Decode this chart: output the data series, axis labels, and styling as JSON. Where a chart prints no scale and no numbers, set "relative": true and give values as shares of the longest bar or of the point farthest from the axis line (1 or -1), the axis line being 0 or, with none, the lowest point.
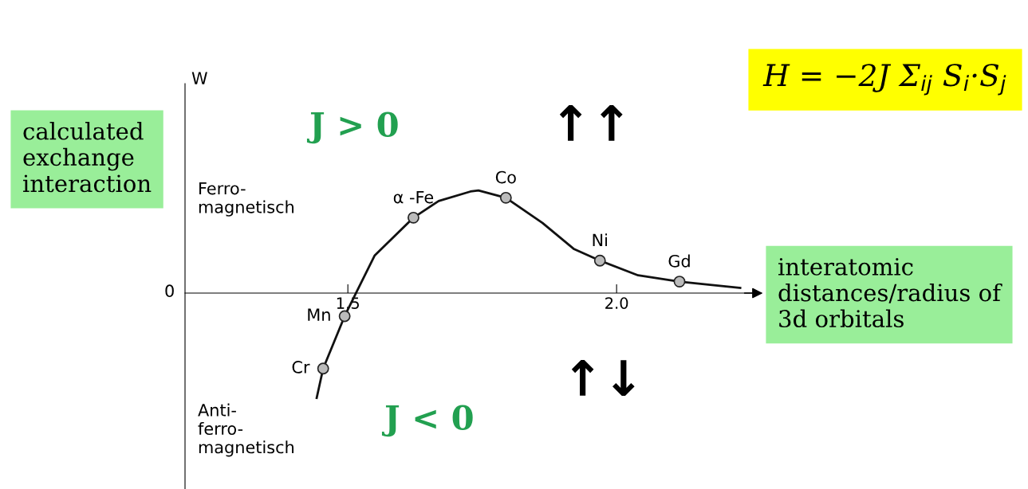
{
  "chart_data": {
    "type": "line",
    "relative": true,
    "xlabel": "interatomic\ndistances/radius of\n3d orbitals",
    "xlim": [
      1.197,
      2.255
    ],
    "xticks": [
      1.5,
      {
        "value": 2.0,
        "label": "2.0"
      }
    ],
    "grid": false,
    "series": [
      {
        "type": "line",
        "color": "#111111",
        "marker": "none",
        "line_style": "solid",
        "x": [
          1.442,
          1.454,
          1.494,
          1.515,
          1.55,
          1.622,
          1.669,
          1.728,
          1.743,
          1.794,
          1.862,
          1.921,
          1.969,
          2.04,
          2.117,
          2.174,
          2.23
        ],
        "values": [
          -1.0,
          -0.72,
          -0.22,
          0,
          0.36,
          0.72,
          0.88,
          0.97,
          0.98,
          0.91,
          0.67,
          0.42,
          0.31,
          0.17,
          0.11,
          0.08,
          0.05
        ]
      },
      {
        "type": "scatter",
        "color": "#bbbbbb",
        "marker": "circle",
        "x": [
          1.454,
          1.494,
          1.622,
          1.794,
          1.969,
          2.117
        ],
        "values": [
          -0.72,
          -0.22,
          0.72,
          0.91,
          0.31,
          0.11
        ]
      }
    ],
    "annotations": [
      "0",
      "Ferro-\nmagnetisch",
      "Anti-\nferro-\nmagnetisch",
      "J > 0",
      "J < 0",
      "↑↑",
      "↑↓",
      "H = −2J Σ$_{ij}$ S$_{i}$·S$_{j}$",
      "calculated\nexchange\ninteraction",
      "W",
      {
        "text": "Cr",
        "x": 1.454,
        "y": -0.72
      },
      {
        "text": "Mn",
        "x": 1.494,
        "y": -0.22
      },
      {
        "text": "α -Fe",
        "x": 1.622,
        "y": 0.72
      },
      {
        "text": "Co",
        "x": 1.794,
        "y": 0.91
      },
      {
        "text": "Ni",
        "x": 1.969,
        "y": 0.31
      },
      {
        "text": "Gd",
        "x": 2.117,
        "y": 0.11
      }
    ]
  }
}
